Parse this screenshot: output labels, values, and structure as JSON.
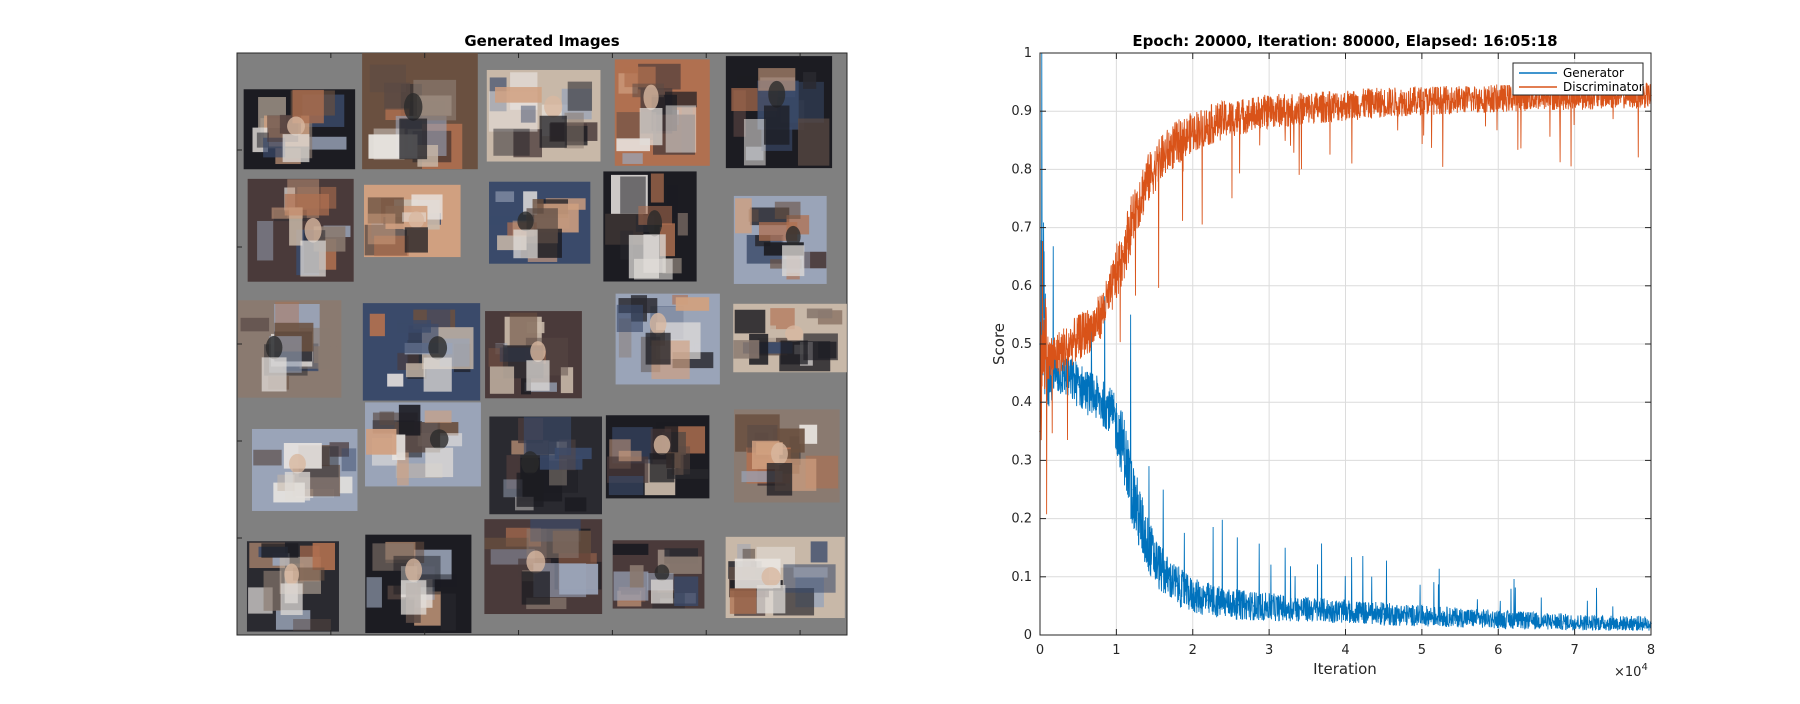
{
  "image_panel": {
    "title": "Generated Images",
    "background_color": "#808080",
    "tile_palette": [
      "#2a2a30",
      "#5a4a44",
      "#8a7a70",
      "#c8b8a8",
      "#e8e4e0",
      "#3a4a6a",
      "#6a5040",
      "#b07050",
      "#1c1c22",
      "#9aa4b8",
      "#d0a080",
      "#4a3a3a"
    ]
  },
  "chart_data": {
    "type": "line",
    "title": "Epoch: 20000, Iteration: 80000, Elapsed: 16:05:18",
    "xlabel": "Iteration",
    "ylabel": "Score",
    "xlim": [
      0,
      80000
    ],
    "ylim": [
      0,
      1
    ],
    "x_ticks": [
      0,
      10000,
      20000,
      30000,
      40000,
      50000,
      60000,
      70000,
      80000
    ],
    "x_tick_labels": [
      "0",
      "1",
      "2",
      "3",
      "4",
      "5",
      "6",
      "7",
      "8"
    ],
    "x_exponent_label": "×10",
    "x_exponent_power": "4",
    "y_ticks": [
      0,
      0.1,
      0.2,
      0.3,
      0.4,
      0.5,
      0.6,
      0.7,
      0.8,
      0.9,
      1
    ],
    "y_tick_labels": [
      "0",
      "0.1",
      "0.2",
      "0.3",
      "0.4",
      "0.5",
      "0.6",
      "0.7",
      "0.8",
      "0.9",
      "1"
    ],
    "grid": true,
    "legend_position": "top-right",
    "series": [
      {
        "name": "Generator",
        "color": "#0072BD",
        "x": [
          0,
          300,
          1000,
          2000,
          3000,
          4000,
          5000,
          6000,
          7000,
          8000,
          9000,
          10000,
          11000,
          12000,
          13000,
          14000,
          15000,
          16000,
          17000,
          18000,
          19000,
          20000,
          22000,
          24000,
          26000,
          28000,
          30000,
          35000,
          40000,
          45000,
          50000,
          55000,
          60000,
          65000,
          70000,
          75000,
          80000
        ],
        "values": [
          0.5,
          0.6,
          0.44,
          0.45,
          0.45,
          0.44,
          0.43,
          0.42,
          0.41,
          0.4,
          0.39,
          0.36,
          0.32,
          0.25,
          0.2,
          0.16,
          0.13,
          0.11,
          0.095,
          0.085,
          0.075,
          0.068,
          0.06,
          0.055,
          0.052,
          0.05,
          0.048,
          0.044,
          0.04,
          0.036,
          0.033,
          0.03,
          0.027,
          0.024,
          0.022,
          0.02,
          0.02
        ],
        "spread": [
          0.1,
          0.2,
          0.06,
          0.04,
          0.04,
          0.04,
          0.04,
          0.04,
          0.04,
          0.04,
          0.04,
          0.05,
          0.06,
          0.06,
          0.06,
          0.05,
          0.045,
          0.04,
          0.035,
          0.035,
          0.032,
          0.03,
          0.03,
          0.028,
          0.026,
          0.025,
          0.024,
          0.022,
          0.02,
          0.02,
          0.018,
          0.017,
          0.016,
          0.015,
          0.014,
          0.013,
          0.013
        ]
      },
      {
        "name": "Discriminator",
        "color": "#D95319",
        "x": [
          0,
          300,
          1000,
          2000,
          3000,
          4000,
          5000,
          6000,
          7000,
          8000,
          9000,
          10000,
          11000,
          12000,
          13000,
          14000,
          15000,
          16000,
          17000,
          18000,
          19000,
          20000,
          22000,
          24000,
          26000,
          28000,
          30000,
          35000,
          40000,
          45000,
          50000,
          55000,
          60000,
          65000,
          70000,
          75000,
          80000
        ],
        "values": [
          0.35,
          0.55,
          0.47,
          0.48,
          0.49,
          0.5,
          0.51,
          0.52,
          0.53,
          0.55,
          0.58,
          0.62,
          0.66,
          0.71,
          0.75,
          0.78,
          0.8,
          0.82,
          0.835,
          0.845,
          0.855,
          0.865,
          0.875,
          0.885,
          0.89,
          0.895,
          0.9,
          0.905,
          0.91,
          0.915,
          0.918,
          0.92,
          0.922,
          0.924,
          0.925,
          0.926,
          0.927
        ],
        "spread": [
          0.15,
          0.15,
          0.05,
          0.04,
          0.04,
          0.04,
          0.04,
          0.04,
          0.04,
          0.04,
          0.04,
          0.05,
          0.05,
          0.05,
          0.05,
          0.045,
          0.04,
          0.04,
          0.04,
          0.04,
          0.035,
          0.035,
          0.035,
          0.033,
          0.032,
          0.03,
          0.03,
          0.028,
          0.027,
          0.026,
          0.025,
          0.024,
          0.024,
          0.023,
          0.023,
          0.022,
          0.022
        ]
      }
    ]
  }
}
